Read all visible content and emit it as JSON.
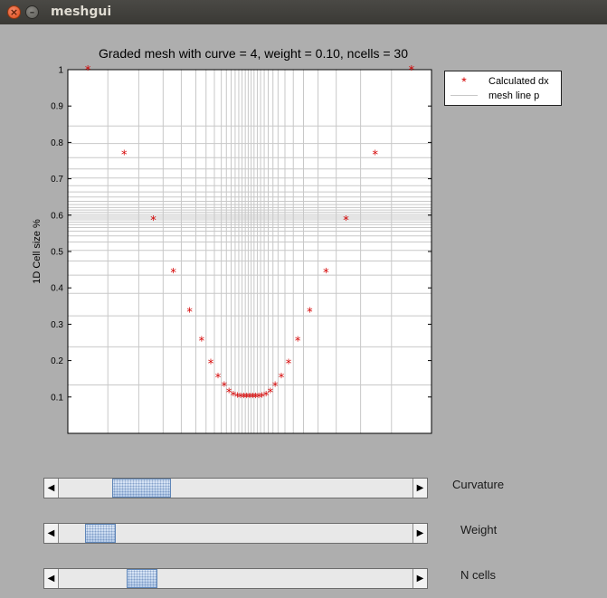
{
  "window": {
    "title": "meshgui"
  },
  "plot": {
    "title": "Graded mesh with curve = 4, weight = 0.10, ncells = 30"
  },
  "legend": {
    "entries": [
      {
        "label": "Calculated dx",
        "marker": "*",
        "color": "#d40000"
      },
      {
        "label": "mesh line p",
        "color": "#c8c8c8"
      }
    ]
  },
  "chart_data": {
    "type": "scatter",
    "title": "Graded mesh with curve = 4, weight = 0.10, ncells = 30",
    "xlabel": "",
    "ylabel": "1D Cell size %",
    "ylim": [
      0,
      1.0
    ],
    "xlim": [
      0,
      1
    ],
    "yticks": [
      "0.1",
      "0.2",
      "0.3",
      "0.4",
      "0.5",
      "0.6",
      "0.7",
      "0.8",
      "0.9",
      "1"
    ],
    "grid": true,
    "legend_position": "outside-top-right",
    "series": [
      {
        "name": "Calculated dx",
        "marker": "*",
        "color": "#d40000",
        "x": [
          0.055,
          0.155,
          0.235,
          0.29,
          0.335,
          0.368,
          0.393,
          0.413,
          0.43,
          0.443,
          0.455,
          0.466,
          0.475,
          0.484,
          0.492,
          0.5,
          0.508,
          0.516,
          0.525,
          0.534,
          0.545,
          0.557,
          0.57,
          0.587,
          0.607,
          0.632,
          0.665,
          0.71,
          0.765,
          0.845,
          0.945
        ],
        "y": [
          1.0,
          0.768,
          0.587,
          0.443,
          0.334,
          0.255,
          0.193,
          0.154,
          0.13,
          0.113,
          0.105,
          0.101,
          0.1,
          0.1,
          0.1,
          0.1,
          0.1,
          0.1,
          0.1,
          0.101,
          0.105,
          0.113,
          0.13,
          0.154,
          0.193,
          0.255,
          0.334,
          0.443,
          0.587,
          0.768,
          1.0
        ]
      },
      {
        "name": "mesh line p",
        "color": "#c8c8c8",
        "x": [
          0.11,
          0.195,
          0.262,
          0.312,
          0.352,
          0.38,
          0.403,
          0.422,
          0.436,
          0.449,
          0.46,
          0.47,
          0.479,
          0.488,
          0.496,
          0.504,
          0.512,
          0.521,
          0.53,
          0.54,
          0.551,
          0.564,
          0.578,
          0.597,
          0.62,
          0.648,
          0.688,
          0.738,
          0.805,
          0.89
        ],
        "y": [
          0.133,
          0.238,
          0.323,
          0.385,
          0.435,
          0.474,
          0.503,
          0.526,
          0.543,
          0.556,
          0.566,
          0.574,
          0.581,
          0.587,
          0.592,
          0.597,
          0.602,
          0.608,
          0.614,
          0.621,
          0.629,
          0.638,
          0.65,
          0.664,
          0.681,
          0.702,
          0.727,
          0.758,
          0.797,
          0.845
        ]
      }
    ]
  },
  "sliders": [
    {
      "label": "Curvature",
      "value": 0.18,
      "thumb_fraction": 0.165
    },
    {
      "label": "Weight",
      "value": 0.08,
      "thumb_fraction": 0.088
    },
    {
      "label": "N cells",
      "value": 0.21,
      "thumb_fraction": 0.088
    }
  ],
  "icons": {
    "close": "close-icon",
    "minimize": "minimize-icon",
    "arrow_left": "arrow-left-icon",
    "arrow_right": "arrow-right-icon"
  }
}
